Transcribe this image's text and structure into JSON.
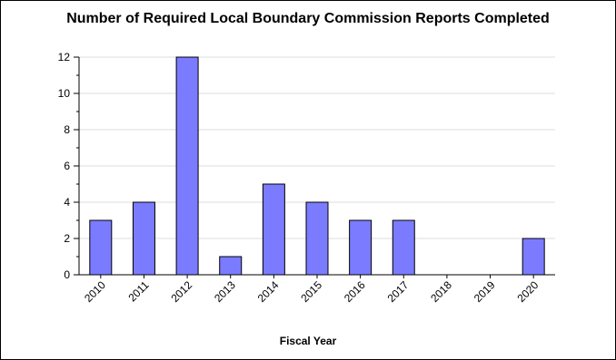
{
  "chart_data": {
    "type": "bar",
    "title": "Number of Required Local Boundary Commission Reports Completed",
    "xlabel": "Fiscal Year",
    "ylabel": "",
    "categories": [
      "2010",
      "2011",
      "2012",
      "2013",
      "2014",
      "2015",
      "2016",
      "2017",
      "2018",
      "2019",
      "2020"
    ],
    "values": [
      3,
      4,
      12,
      1,
      5,
      4,
      3,
      3,
      0,
      0,
      2
    ],
    "ylim": [
      0,
      12
    ],
    "yticks": [
      0,
      2,
      4,
      6,
      8,
      10,
      12
    ],
    "grid": true,
    "legend": "none",
    "colors": {
      "bar_fill": "#7b7bff",
      "bar_stroke": "#000000",
      "grid": "#dddddd",
      "axis": "#000000"
    }
  }
}
